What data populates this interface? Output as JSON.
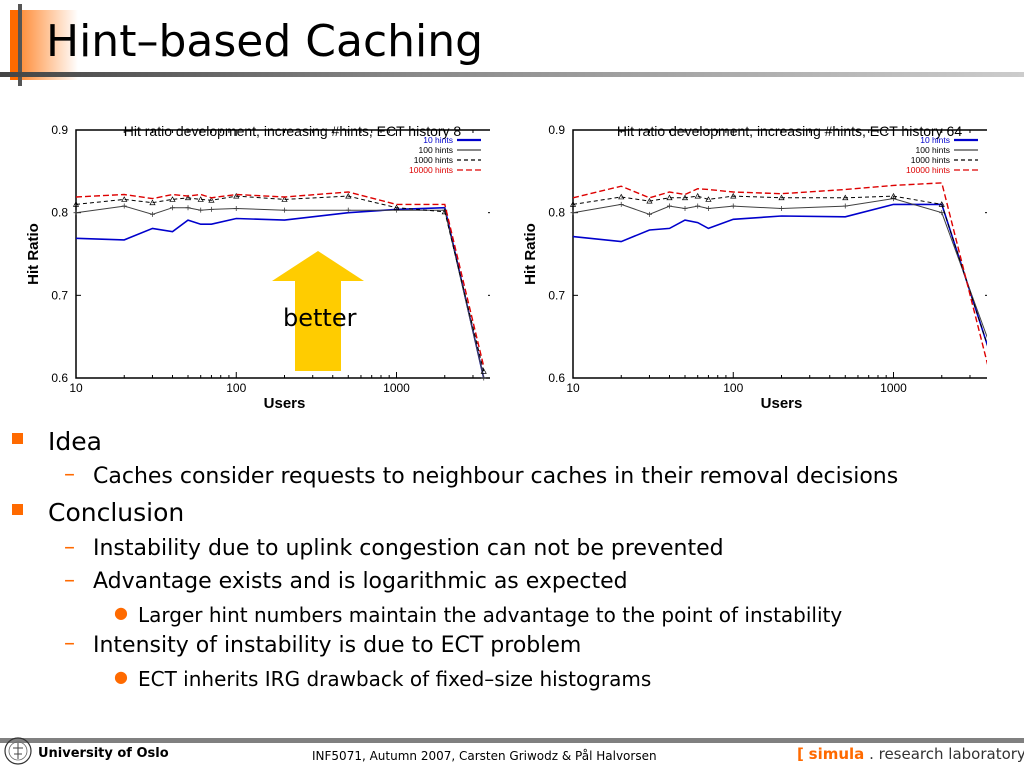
{
  "title": "Hint–based Caching",
  "annotation": "better",
  "bullets": [
    {
      "level": 1,
      "text": "Idea"
    },
    {
      "level": 2,
      "text": "Caches consider requests to neighbour caches in their removal decisions"
    },
    {
      "level": 1,
      "text": "Conclusion"
    },
    {
      "level": 2,
      "text": "Instability due to uplink congestion can not be prevented"
    },
    {
      "level": 2,
      "text": "Advantage exists and is logarithmic as expected"
    },
    {
      "level": 3,
      "text": "Larger hint numbers maintain the advantage to the point of instability"
    },
    {
      "level": 2,
      "text": "Intensity of instability is due to ECT problem"
    },
    {
      "level": 3,
      "text": "ECT inherits IRG drawback of fixed–size histograms"
    }
  ],
  "footer": {
    "university": "University of Oslo",
    "course": "INF5071,  Autumn 2007,  Carsten Griwodz & Pål Halvorsen",
    "lab_open": "[",
    "lab_simula": "simula",
    "lab_rest": ". research laboratory",
    "lab_close": "]"
  },
  "colors": {
    "accent": "#ff6a00",
    "arrow": "#ffcc00",
    "series_10": "#0000cc",
    "series_100": "#404040",
    "series_1000": "#000000",
    "series_10000": "#dd0000"
  },
  "chart_data": [
    {
      "type": "line",
      "title": "Hit ratio development, increasing #hints, ECT history 8",
      "xlabel": "Users",
      "ylabel": "Hit Ratio",
      "xscale": "log",
      "xlim": [
        10,
        4000
      ],
      "ylim": [
        0.6,
        0.9
      ],
      "xticks": [
        "10",
        "100",
        "1000"
      ],
      "yticks": [
        "0.6",
        "0.7",
        "0.8",
        "0.9"
      ],
      "legend_position": "top-right",
      "series": [
        {
          "name": "10 hints",
          "x": [
            10,
            20,
            30,
            40,
            50,
            60,
            70,
            100,
            200,
            500,
            1000,
            2000,
            3500
          ],
          "y": [
            0.769,
            0.767,
            0.781,
            0.777,
            0.791,
            0.786,
            0.786,
            0.793,
            0.791,
            0.8,
            0.804,
            0.806,
            0.6
          ]
        },
        {
          "name": "100 hints",
          "x": [
            10,
            20,
            30,
            40,
            50,
            60,
            70,
            100,
            200,
            500,
            1000,
            2000,
            3500
          ],
          "y": [
            0.8,
            0.808,
            0.798,
            0.806,
            0.806,
            0.803,
            0.804,
            0.805,
            0.803,
            0.803,
            0.803,
            0.803,
            0.6
          ]
        },
        {
          "name": "1000 hints",
          "x": [
            10,
            20,
            30,
            40,
            50,
            60,
            70,
            100,
            200,
            500,
            1000,
            2000,
            3500
          ],
          "y": [
            0.81,
            0.816,
            0.812,
            0.816,
            0.818,
            0.816,
            0.815,
            0.82,
            0.816,
            0.82,
            0.806,
            0.801,
            0.608
          ]
        },
        {
          "name": "10000 hints",
          "x": [
            10,
            20,
            30,
            40,
            50,
            60,
            70,
            100,
            200,
            500,
            1000,
            2000,
            3500
          ],
          "y": [
            0.819,
            0.822,
            0.817,
            0.822,
            0.82,
            0.822,
            0.818,
            0.822,
            0.819,
            0.825,
            0.81,
            0.81,
            0.614
          ]
        }
      ]
    },
    {
      "type": "line",
      "title": "Hit ratio development, increasing #hints, ECT history 64",
      "xlabel": "Users",
      "ylabel": "Hit Ratio",
      "xscale": "log",
      "xlim": [
        10,
        4000
      ],
      "ylim": [
        0.6,
        0.9
      ],
      "xticks": [
        "10",
        "100",
        "1000"
      ],
      "yticks": [
        "0.6",
        "0.7",
        "0.8",
        "0.9"
      ],
      "legend_position": "top-right",
      "series": [
        {
          "name": "10 hints",
          "x": [
            10,
            20,
            30,
            40,
            50,
            60,
            70,
            100,
            200,
            500,
            1000,
            2000,
            4000
          ],
          "y": [
            0.771,
            0.765,
            0.779,
            0.781,
            0.791,
            0.788,
            0.781,
            0.792,
            0.796,
            0.795,
            0.81,
            0.81,
            0.63
          ]
        },
        {
          "name": "100 hints",
          "x": [
            10,
            20,
            30,
            40,
            50,
            60,
            70,
            100,
            200,
            500,
            1000,
            2000,
            4000
          ],
          "y": [
            0.8,
            0.81,
            0.798,
            0.808,
            0.805,
            0.808,
            0.805,
            0.808,
            0.805,
            0.808,
            0.817,
            0.8,
            0.64
          ]
        },
        {
          "name": "1000 hints",
          "x": [
            10,
            20,
            30,
            40,
            50,
            60,
            70,
            100,
            200,
            500,
            1000,
            2000,
            4000
          ],
          "y": [
            0.81,
            0.819,
            0.814,
            0.818,
            0.818,
            0.82,
            0.816,
            0.82,
            0.818,
            0.818,
            0.82,
            0.81,
            0.63
          ]
        },
        {
          "name": "10000 hints",
          "x": [
            10,
            20,
            30,
            40,
            50,
            60,
            70,
            100,
            200,
            500,
            1000,
            2000,
            4000
          ],
          "y": [
            0.818,
            0.832,
            0.818,
            0.825,
            0.822,
            0.829,
            0.828,
            0.825,
            0.823,
            0.828,
            0.833,
            0.836,
            0.605
          ]
        }
      ]
    }
  ]
}
